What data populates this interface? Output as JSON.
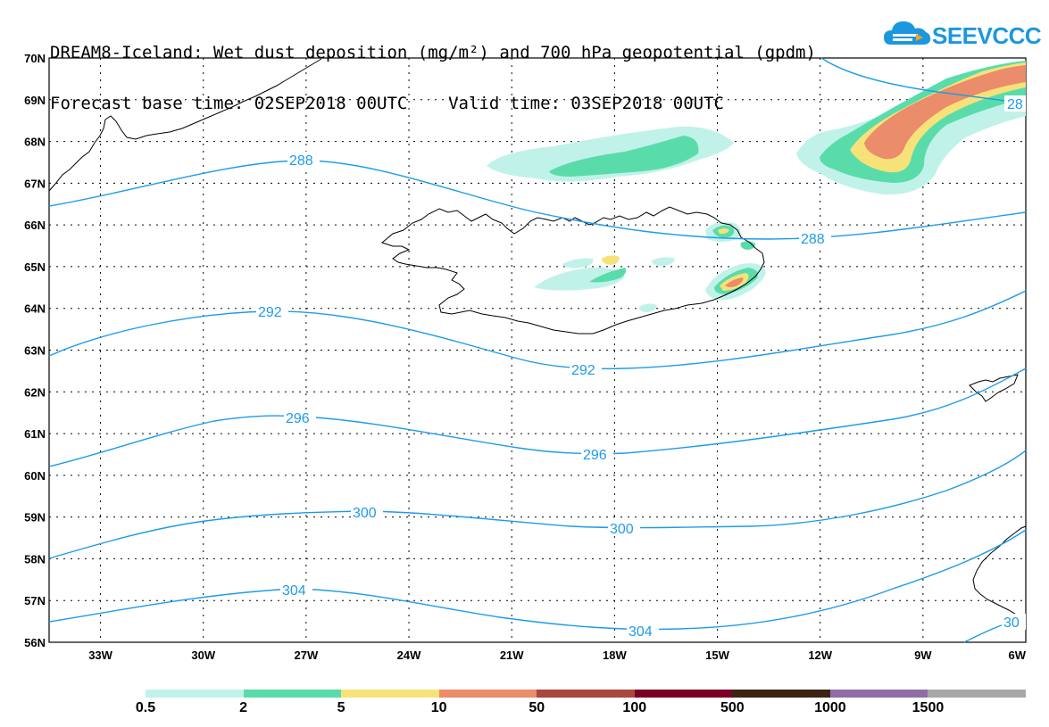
{
  "title": {
    "line1": "DREAM8-Iceland: Wet dust deposition (mg/m²) and 700 hPa geopotential (gpdm)",
    "line2": "Forecast base time: 02SEP2018 00UTC    Valid time: 03SEP2018 00UTC"
  },
  "logo": {
    "text": "SEEVCCC",
    "icon": "cloud-icon"
  },
  "map": {
    "projection": "lat-lon",
    "lon_range": [
      -34.5,
      -6
    ],
    "lat_range": [
      56,
      70
    ],
    "grid": true,
    "lat_labels": [
      "70N",
      "69N",
      "68N",
      "67N",
      "66N",
      "65N",
      "64N",
      "63N",
      "62N",
      "61N",
      "60N",
      "59N",
      "58N",
      "57N",
      "56N"
    ],
    "lon_labels": [
      "33W",
      "30W",
      "27W",
      "24W",
      "21W",
      "18W",
      "15W",
      "12W",
      "9W",
      "6W"
    ],
    "contour_color": "#1e9be8",
    "contours": [
      {
        "value": 288,
        "labels": [
          "288",
          "288",
          "28"
        ]
      },
      {
        "value": 292,
        "labels": [
          "292",
          "292"
        ]
      },
      {
        "value": 296,
        "labels": [
          "296",
          "296"
        ]
      },
      {
        "value": 300,
        "labels": [
          "300",
          "300"
        ]
      },
      {
        "value": 304,
        "labels": [
          "304",
          "304",
          "30"
        ]
      }
    ]
  },
  "legend": {
    "labels": [
      "0.5",
      "2",
      "5",
      "10",
      "50",
      "100",
      "500",
      "1000",
      "1500"
    ],
    "colors": [
      "#c0f2ea",
      "#5adcaa",
      "#f7e27a",
      "#eb8c6a",
      "#a8483e",
      "#7a0024",
      "#3a2414",
      "#8e6ea8",
      "#a8a8a8"
    ]
  }
}
